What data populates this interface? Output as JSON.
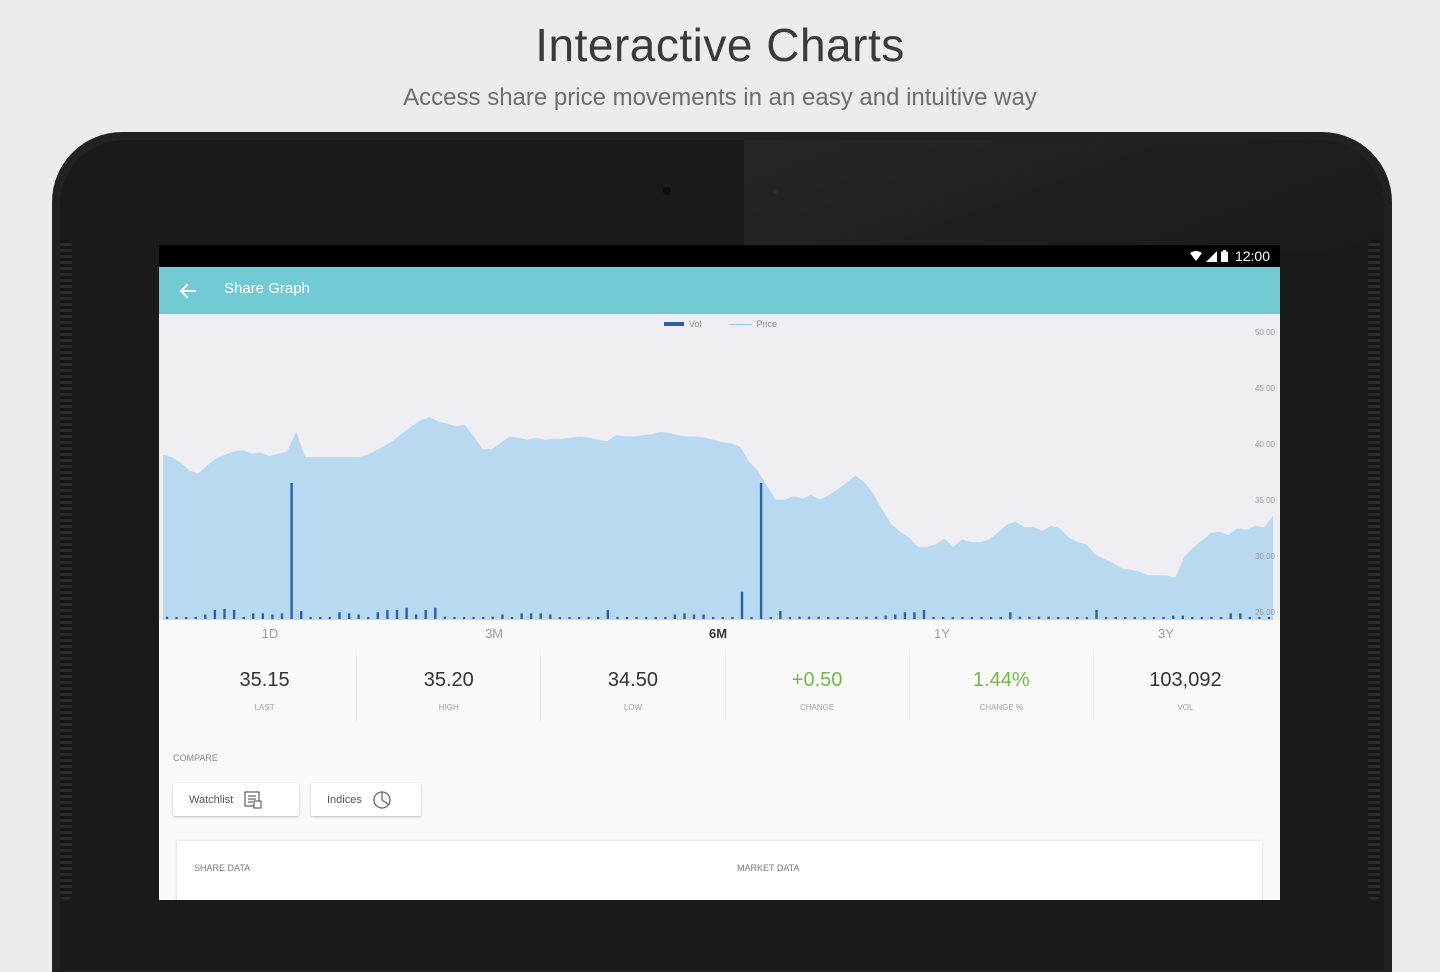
{
  "promo": {
    "title": "Interactive Charts",
    "subtitle": "Access share price movements in an easy and intuitive way"
  },
  "status_bar": {
    "time": "12:00",
    "icons": [
      "wifi-icon",
      "signal-icon",
      "battery-icon"
    ]
  },
  "toolbar": {
    "title": "Share Graph",
    "back_icon": "arrow-left-icon"
  },
  "colors": {
    "toolbar": "#72cad5",
    "price_area": "#b9d9f1",
    "volume_bar": "#2a62a8",
    "positive": "#6fba45"
  },
  "chart_data": {
    "type": "area",
    "legend": [
      "Vol",
      "Price"
    ],
    "legend_position": "top-center",
    "y_axis": {
      "side": "right",
      "ticks": [
        "50.00",
        "45.00",
        "40.00",
        "35.00",
        "30.00",
        "25.00"
      ],
      "range": [
        25,
        50
      ]
    },
    "x_ticks": [
      "1D",
      "3M",
      "6M",
      "1Y",
      "3Y"
    ],
    "series": [
      {
        "name": "Price",
        "values": [
          39.3,
          39.1,
          38.6,
          37.9,
          37.7,
          38.4,
          39.0,
          39.3,
          39.6,
          39.7,
          39.4,
          39.5,
          39.2,
          39.4,
          39.6,
          41.3,
          39.1,
          39.1,
          39.1,
          39.1,
          39.1,
          39.1,
          39.1,
          39.3,
          39.7,
          40.1,
          40.6,
          41.2,
          41.8,
          42.3,
          42.6,
          42.2,
          42.0,
          41.8,
          41.9,
          40.9,
          39.8,
          39.8,
          40.3,
          40.9,
          40.8,
          40.6,
          40.8,
          40.6,
          40.7,
          40.7,
          40.8,
          40.9,
          40.8,
          40.6,
          40.5,
          41.0,
          40.9,
          40.9,
          41.0,
          41.1,
          41.3,
          41.2,
          41.0,
          40.9,
          40.9,
          40.8,
          40.6,
          40.4,
          40.3,
          40.0,
          38.7,
          37.9,
          36.6,
          35.4,
          35.4,
          35.7,
          35.5,
          35.8,
          35.4,
          35.8,
          36.3,
          36.9,
          37.5,
          36.9,
          35.9,
          34.5,
          33.3,
          32.6,
          32.1,
          31.3,
          31.3,
          31.5,
          32.0,
          31.3,
          31.9,
          31.7,
          31.7,
          31.9,
          32.5,
          33.2,
          33.5,
          33.0,
          33.0,
          32.7,
          33.1,
          32.9,
          32.1,
          31.7,
          31.5,
          30.6,
          30.2,
          29.9,
          29.4,
          29.3,
          29.1,
          28.8,
          28.8,
          28.8,
          28.6,
          30.4,
          31.2,
          31.8,
          32.5,
          32.6,
          32.3,
          32.9,
          32.8,
          33.1,
          33.0,
          34.0
        ]
      },
      {
        "name": "Vol",
        "values": [
          0.2,
          0.1,
          0.1,
          0.1,
          0.4,
          0.8,
          0.9,
          0.8,
          0.1,
          0.5,
          0.5,
          0.4,
          0.5,
          12.0,
          0.7,
          0.1,
          0.1,
          0.1,
          0.6,
          0.5,
          0.4,
          0.1,
          0.6,
          0.8,
          0.8,
          1.0,
          0.4,
          0.8,
          1.0,
          0.2,
          0.1,
          0.1,
          0.1,
          0.1,
          0.2,
          0.4,
          0.1,
          0.5,
          0.5,
          0.5,
          0.4,
          0.1,
          0.1,
          0.1,
          0.1,
          0.1,
          0.8,
          0.1,
          0.1,
          0.1,
          0.1,
          0.1,
          0.1,
          0.4,
          0.5,
          0.4,
          0.4,
          0.1,
          0.1,
          0.1,
          2.4,
          0.1,
          12.0,
          0.1,
          0.7,
          0.1,
          0.2,
          0.2,
          0.2,
          0.1,
          0.1,
          0.1,
          0.1,
          0.2,
          0.2,
          0.3,
          0.4,
          0.6,
          0.6,
          0.8,
          0.1,
          0.1,
          0.1,
          0.1,
          0.1,
          0.1,
          0.1,
          0.1,
          0.6,
          0.2,
          0.2,
          0.2,
          0.2,
          0.1,
          0.1,
          0.1,
          0.1,
          0.8,
          0.1,
          0.1,
          0.1,
          0.1,
          0.1,
          0.1,
          0.1,
          0.3,
          0.3,
          0.1,
          0.1,
          0.1,
          0.1,
          0.5,
          0.5,
          0.1,
          0.1,
          0.1
        ]
      }
    ]
  },
  "range_tabs": {
    "items": [
      "1D",
      "3M",
      "6M",
      "1Y",
      "3Y"
    ],
    "selected": "6M"
  },
  "stats": [
    {
      "value": "35.15",
      "label": "LAST"
    },
    {
      "value": "35.20",
      "label": "HIGH"
    },
    {
      "value": "34.50",
      "label": "LOW"
    },
    {
      "value": "+0.50",
      "label": "CHANGE",
      "positive": true
    },
    {
      "value": "1.44%",
      "label": "CHANGE %",
      "positive": true
    },
    {
      "value": "103,092",
      "label": "VOL"
    }
  ],
  "compare": {
    "label": "COMPARE",
    "watchlist_label": "Watchlist",
    "indices_label": "Indices"
  },
  "data_card": {
    "share_data_title": "SHARE DATA",
    "market_data_title": "MARKET DATA"
  }
}
